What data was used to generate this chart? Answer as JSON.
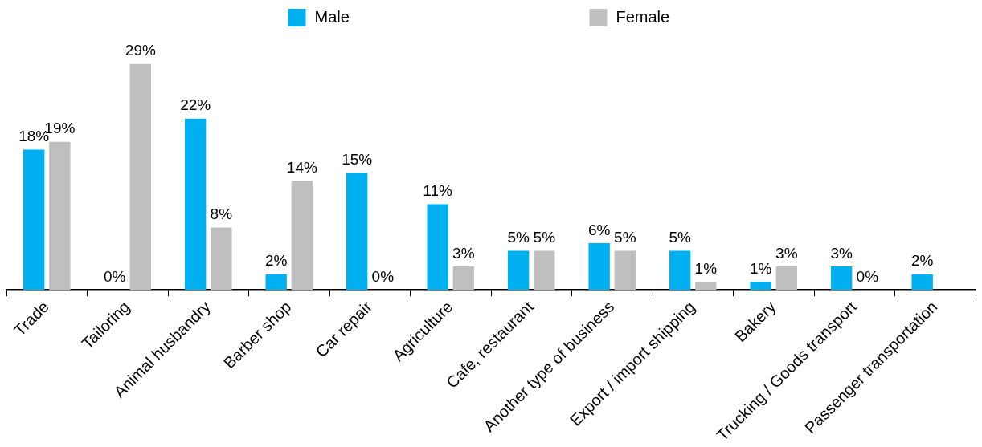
{
  "chart_data": {
    "type": "bar",
    "categories": [
      "Trade",
      "Tailoring",
      "Animal husbandry",
      "Barber shop",
      "Car repair",
      "Agriculture",
      "Cafe, restaurant",
      "Another type of business",
      "Export / import shipping",
      "Bakery",
      "Trucking / Goods transport",
      "Passenger transportation"
    ],
    "series": [
      {
        "name": "Male",
        "color": "#00b0f0",
        "values": [
          18,
          0,
          22,
          2,
          15,
          11,
          5,
          6,
          5,
          1,
          3,
          2
        ],
        "value_labels": [
          "18%",
          "0%",
          "22%",
          "2%",
          "15%",
          "11%",
          "5%",
          "6%",
          "5%",
          "1%",
          "3%",
          "2%"
        ]
      },
      {
        "name": "Female",
        "color": "#bfbfbf",
        "values": [
          19,
          29,
          8,
          14,
          0,
          3,
          5,
          5,
          1,
          3,
          0,
          null
        ],
        "value_labels": [
          "19%",
          "29%",
          "8%",
          "14%",
          "0%",
          "3%",
          "5%",
          "5%",
          "1%",
          "3%",
          "0%",
          null
        ]
      }
    ],
    "tick_labels": "x",
    "grid": false,
    "legend": "top"
  }
}
